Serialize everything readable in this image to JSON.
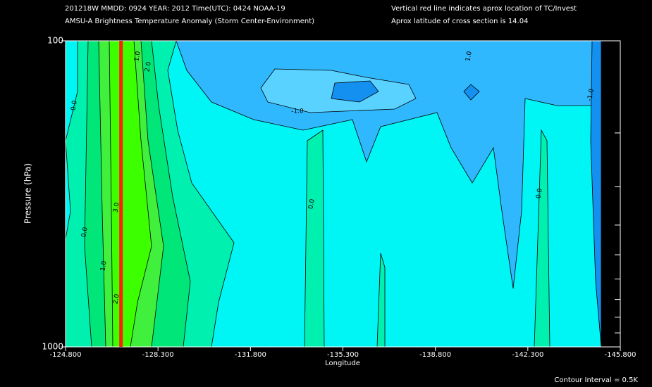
{
  "chart_data": {
    "type": "contour",
    "header_left": [
      "201218W  MMDD: 0924 YEAR: 2012 Time(UTC): 0424 NOAA-19",
      "AMSU-A Brightness Temperature Anomaly (Storm Center-Environment)"
    ],
    "header_right": [
      "Vertical red line indicates aprox location of TC/Invest",
      "Aprox latitude of cross section is 14.04"
    ],
    "x_label": "Longitude",
    "y_label": "Pressure (hPa)",
    "xlim": [
      -124.8,
      -145.8
    ],
    "xticks": [
      {
        "value": -124.8,
        "label": "-124.800"
      },
      {
        "value": -128.3,
        "label": "-128.300"
      },
      {
        "value": -131.8,
        "label": "-131.800"
      },
      {
        "value": -135.3,
        "label": "-135.300"
      },
      {
        "value": -138.8,
        "label": "-138.800"
      },
      {
        "value": -142.3,
        "label": "-142.300"
      },
      {
        "value": -145.8,
        "label": "-145.800"
      }
    ],
    "ylim": [
      100,
      1000
    ],
    "y_log": true,
    "y_reversed": true,
    "yticks": [
      100,
      1000
    ],
    "y_minor_ticks": [
      200,
      300,
      400,
      500,
      600,
      700,
      800,
      900
    ],
    "tc_longitude": -126.9,
    "tc_line_color": "#ff2000",
    "bands": [
      {
        "from": -2.0,
        "to": -1.5,
        "color": "#1490f0"
      },
      {
        "from": -1.5,
        "to": -1.0,
        "color": "#30b8ff"
      },
      {
        "from": -1.0,
        "to": -0.5,
        "color": "#5ad2ff"
      },
      {
        "from": -0.5,
        "to": 0.0,
        "color": "#00f5f5"
      },
      {
        "from": 0.0,
        "to": 0.5,
        "color": "#00f0b0"
      },
      {
        "from": 0.5,
        "to": 1.0,
        "color": "#00e678"
      },
      {
        "from": 1.0,
        "to": 2.0,
        "color": "#40f03c"
      },
      {
        "from": 2.0,
        "to": 3.0,
        "color": "#3cff00"
      }
    ],
    "contour_labels": [
      "0.0",
      "1.0",
      "2.0",
      "1.0",
      "-1.0",
      "-1.0",
      "0.0",
      "1.0",
      "3.0",
      "2.0",
      "0.0",
      "0.0"
    ],
    "contour_interval_label": "Contour Interval = 0.5K"
  }
}
